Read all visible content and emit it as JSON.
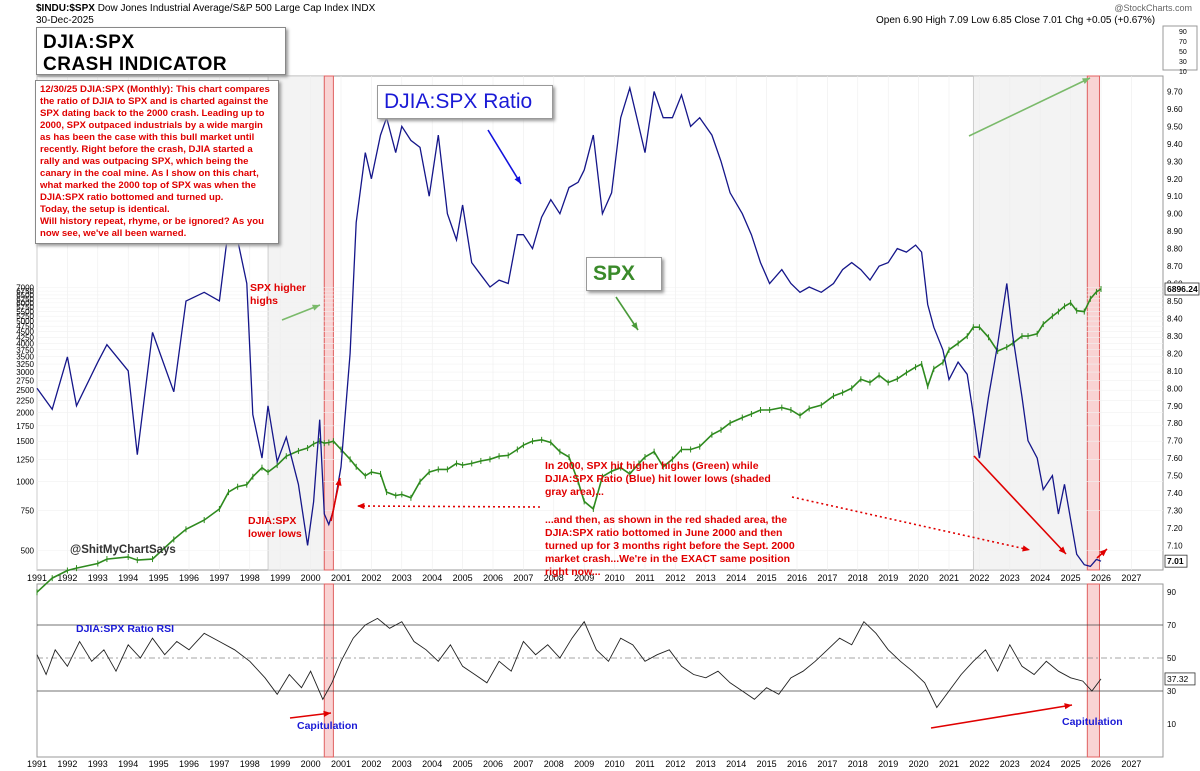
{
  "header": {
    "symbol": "$INDU:$SPX",
    "description": "Dow Jones Industrial Average/S&P 500 Large Cap Index  INDX",
    "date": "30-Dec-2025",
    "brand": "@StockCharts.com",
    "ohlc": "Open 6.90  High 7.09  Low 6.85  Close 7.01  Chg +0.05 (+0.67%)"
  },
  "title": {
    "line1": "DJIA:SPX",
    "line2": "CRASH INDICATOR"
  },
  "note": {
    "lines": [
      "12/30/25 DJIA:SPX (Monthly): This chart compares the ratio of DJIA to SPX and is charted against the SPX dating back to the 2000 crash. Leading up to 2000, SPX outpaced industrials by a wide margin as has been the case with this bull market until recently. Right before the crash, DJIA started a rally and was outpacing SPX, which being the canary in the coal mine. As I show on this chart, what marked the 2000 top of SPX was when the DJIA:SPX ratio bottomed and turned up.",
      "Today, the setup is identical.",
      "Will history repeat, rhyme, or be ignored? As you now see, we've all been warned."
    ]
  },
  "labels": {
    "ratio_box": "DJIA:SPX Ratio",
    "spx_box": "SPX",
    "spx_higher": "SPX higher highs",
    "djia_lower": "DJIA:SPX lower lows",
    "annotation1": "In 2000, SPX hit higher highs (Green) while DJIA:SPX Ratio (Blue) hit lower lows (shaded gray area)...",
    "annotation2": "...and then, as shown in the red shaded area, the DJIA:SPX ratio bottomed in June 2000 and then turned up for 3 months right before the Sept. 2000 market crash...We're in the EXACT same position right now...",
    "handle": "@ShitMyChartSays",
    "rsi_title": "DJIA:SPX Ratio RSI",
    "capitulation": "Capitulation"
  },
  "colors": {
    "ratio": "#15168a",
    "spx": "#2e8a1e",
    "annotation": "#e00000",
    "rsi_line": "#222222",
    "red_zone": "#f8c8c8"
  },
  "chart_data": [
    {
      "type": "line",
      "title": "DJIA:SPX",
      "x": [
        1991,
        1991.5,
        1992,
        1992.3,
        1993,
        1993.3,
        1994,
        1994.3,
        1994.8,
        1995.5,
        1995.9,
        1996.5,
        1997,
        1997.3,
        1997.6,
        1997.9,
        1998.1,
        1998.4,
        1998.6,
        1998.9,
        1999.2,
        1999.6,
        1999.9,
        2000.1,
        2000.3,
        2000.45,
        2000.6,
        2000.75,
        2001,
        2001.3,
        2001.5,
        2001.8,
        2002,
        2002.3,
        2002.5,
        2002.8,
        2003,
        2003.3,
        2003.6,
        2003.9,
        2004.2,
        2004.5,
        2004.8,
        2005,
        2005.3,
        2005.6,
        2005.9,
        2006.2,
        2006.5,
        2006.8,
        2007,
        2007.3,
        2007.6,
        2007.9,
        2008.2,
        2008.5,
        2008.8,
        2009,
        2009.3,
        2009.6,
        2009.9,
        2010.2,
        2010.5,
        2010.8,
        2011,
        2011.3,
        2011.6,
        2011.9,
        2012.2,
        2012.5,
        2012.8,
        2013.2,
        2013.5,
        2013.8,
        2014.2,
        2014.5,
        2014.8,
        2015.1,
        2015.5,
        2015.8,
        2016.1,
        2016.4,
        2016.8,
        2017.2,
        2017.5,
        2017.8,
        2018.1,
        2018.4,
        2018.7,
        2019,
        2019.3,
        2019.6,
        2019.9,
        2020.1,
        2020.3,
        2020.5,
        2020.8,
        2021,
        2021.3,
        2021.6,
        2021.8,
        2022,
        2022.3,
        2022.6,
        2022.9,
        2023.1,
        2023.4,
        2023.6,
        2023.9,
        2024.1,
        2024.4,
        2024.6,
        2024.8,
        2025,
        2025.2,
        2025.45,
        2025.65,
        2025.85,
        2026
      ],
      "series": [
        {
          "name": "DJIA:SPX Ratio",
          "values": [
            8.0,
            7.88,
            8.18,
            7.9,
            8.15,
            8.25,
            8.1,
            7.62,
            8.32,
            7.98,
            8.5,
            8.55,
            8.5,
            8.92,
            8.85,
            8.6,
            7.85,
            7.6,
            7.9,
            7.58,
            7.72,
            7.45,
            7.1,
            7.35,
            7.82,
            7.28,
            7.22,
            7.3,
            7.55,
            8.2,
            8.95,
            9.35,
            9.2,
            9.45,
            9.55,
            9.35,
            9.5,
            9.42,
            9.38,
            9.1,
            9.45,
            9.0,
            8.85,
            9.05,
            8.72,
            8.65,
            8.58,
            8.62,
            8.6,
            8.88,
            8.88,
            8.8,
            8.98,
            9.08,
            9.0,
            9.15,
            9.18,
            9.25,
            9.45,
            9.0,
            9.12,
            9.55,
            9.72,
            9.5,
            9.35,
            9.7,
            9.55,
            9.55,
            9.68,
            9.5,
            9.55,
            9.45,
            9.3,
            9.12,
            9.0,
            8.88,
            8.72,
            8.6,
            8.68,
            8.6,
            8.55,
            8.58,
            8.55,
            8.6,
            8.68,
            8.72,
            8.68,
            8.62,
            8.7,
            8.72,
            8.8,
            8.78,
            8.82,
            8.78,
            8.48,
            8.35,
            8.22,
            8.05,
            8.15,
            8.08,
            7.85,
            7.6,
            7.95,
            8.25,
            8.6,
            8.3,
            7.95,
            7.7,
            7.6,
            7.42,
            7.5,
            7.28,
            7.45,
            7.25,
            7.05,
            6.99,
            6.98,
            7.02,
            7.01
          ]
        },
        {
          "name": "SPX",
          "values": [
            330,
            380,
            410,
            420,
            440,
            460,
            470,
            455,
            460,
            560,
            620,
            680,
            760,
            900,
            950,
            970,
            1050,
            1150,
            1100,
            1180,
            1290,
            1360,
            1400,
            1460,
            1500,
            1470,
            1480,
            1500,
            1380,
            1250,
            1160,
            1060,
            1100,
            1080,
            900,
            870,
            880,
            850,
            1000,
            1100,
            1130,
            1130,
            1200,
            1180,
            1200,
            1230,
            1250,
            1290,
            1300,
            1380,
            1440,
            1500,
            1520,
            1480,
            1350,
            1280,
            1000,
            820,
            760,
            1050,
            1110,
            1150,
            1080,
            1200,
            1280,
            1350,
            1160,
            1250,
            1380,
            1380,
            1420,
            1600,
            1680,
            1800,
            1900,
            1970,
            2050,
            2050,
            2100,
            2050,
            1940,
            2080,
            2150,
            2360,
            2440,
            2550,
            2790,
            2700,
            2900,
            2700,
            2800,
            2980,
            3150,
            3250,
            2600,
            3100,
            3300,
            3750,
            4000,
            4300,
            4700,
            4700,
            4250,
            3700,
            3850,
            4000,
            4300,
            4300,
            4400,
            4850,
            5250,
            5500,
            5800,
            6000,
            5550,
            5500,
            6250,
            6700,
            6896
          ]
        }
      ],
      "y_left_ticks": [
        500,
        750,
        1000,
        1250,
        1500,
        1750,
        2000,
        2250,
        2500,
        2750,
        3000,
        3250,
        3500,
        3750,
        4000,
        4250,
        4500,
        4750,
        5000,
        5250,
        5500,
        5750,
        6000,
        6250,
        6500,
        6750,
        7000
      ],
      "y_right_ticks": [
        7.1,
        7.2,
        7.3,
        7.4,
        7.5,
        7.6,
        7.7,
        7.8,
        7.9,
        8.0,
        8.1,
        8.2,
        8.3,
        8.4,
        8.5,
        8.6,
        8.7,
        8.8,
        8.9,
        9.0,
        9.1,
        9.2,
        9.3,
        9.4,
        9.5,
        9.6,
        9.7
      ],
      "x_ticks": [
        1991,
        1992,
        1993,
        1994,
        1995,
        1996,
        1997,
        1998,
        1999,
        2000,
        2001,
        2002,
        2003,
        2004,
        2005,
        2006,
        2007,
        2008,
        2009,
        2010,
        2011,
        2012,
        2013,
        2014,
        2015,
        2016,
        2017,
        2018,
        2019,
        2020,
        2021,
        2022,
        2023,
        2024,
        2025,
        2026,
        2027
      ],
      "last_values": {
        "spx": "6896.24",
        "ratio": "7.01"
      },
      "ylim_right": [
        6.98,
        9.8
      ],
      "red_zones": [
        [
          2000.45,
          2000.75
        ],
        [
          2025.55,
          2025.95
        ]
      ],
      "gray_zones": [
        [
          1998.6,
          2000.45
        ],
        [
          2021.8,
          2025.55
        ]
      ],
      "grid": true
    },
    {
      "type": "line",
      "title": "DJIA:SPX Ratio RSI",
      "x": [
        1991,
        1991.3,
        1991.6,
        1992,
        1992.4,
        1992.8,
        1993.2,
        1993.6,
        1994,
        1994.4,
        1994.8,
        1995.2,
        1995.6,
        1996,
        1996.5,
        1997,
        1997.5,
        1998,
        1998.5,
        1998.9,
        1999.3,
        1999.7,
        2000,
        2000.4,
        2000.7,
        2001,
        2001.4,
        2001.8,
        2002.2,
        2002.6,
        2003,
        2003.4,
        2003.8,
        2004.2,
        2004.6,
        2005,
        2005.4,
        2005.8,
        2006.2,
        2006.6,
        2007,
        2007.4,
        2007.8,
        2008.2,
        2008.6,
        2009,
        2009.4,
        2009.8,
        2010.2,
        2010.6,
        2011,
        2011.4,
        2011.8,
        2012.2,
        2012.6,
        2013,
        2013.4,
        2013.8,
        2014.2,
        2014.6,
        2015,
        2015.4,
        2015.8,
        2016.2,
        2016.6,
        2017,
        2017.4,
        2017.8,
        2018.2,
        2018.6,
        2019,
        2019.4,
        2019.8,
        2020.2,
        2020.6,
        2021,
        2021.4,
        2021.8,
        2022.2,
        2022.6,
        2023,
        2023.4,
        2023.8,
        2024.2,
        2024.6,
        2025,
        2025.4,
        2025.7,
        2026
      ],
      "values": [
        52,
        40,
        55,
        45,
        60,
        48,
        55,
        42,
        58,
        50,
        62,
        52,
        60,
        55,
        65,
        60,
        55,
        48,
        38,
        28,
        40,
        32,
        42,
        25,
        35,
        48,
        62,
        70,
        74,
        68,
        72,
        60,
        55,
        48,
        58,
        45,
        40,
        35,
        48,
        42,
        60,
        52,
        58,
        50,
        62,
        72,
        55,
        48,
        62,
        58,
        48,
        52,
        55,
        45,
        40,
        38,
        42,
        35,
        30,
        25,
        32,
        28,
        38,
        42,
        48,
        55,
        62,
        58,
        72,
        65,
        55,
        48,
        42,
        35,
        20,
        30,
        40,
        48,
        55,
        42,
        58,
        45,
        40,
        48,
        42,
        38,
        36,
        30,
        37.32
      ],
      "ylim": [
        0,
        100
      ],
      "y_ticks": [
        10,
        30,
        50,
        70,
        90
      ],
      "levels": [
        70,
        50,
        30
      ],
      "last_value": "37.32"
    }
  ]
}
